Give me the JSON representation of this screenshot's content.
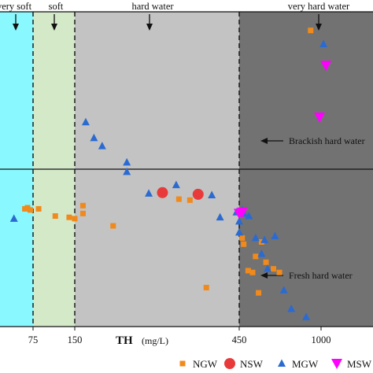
{
  "chart_data": {
    "type": "scatter",
    "xlabel": "TH",
    "xlabel_unit": "(mg/L)",
    "x_ticks": [
      "75",
      "150",
      "450",
      "1000"
    ],
    "zones": [
      {
        "label": "very soft",
        "color": "#8af9ff"
      },
      {
        "label": "soft",
        "color": "#d3e9c8"
      },
      {
        "label": "hard water",
        "color": "#c3c3c3"
      },
      {
        "label": "very hard water",
        "color": "#727272"
      }
    ],
    "annotations": [
      "Brackish hard water",
      "Fresh hard water"
    ],
    "legend": [
      {
        "name": "NGW",
        "marker": "square",
        "color": "#f08a1c"
      },
      {
        "name": "NSW",
        "marker": "circle",
        "color": "#e83a3a"
      },
      {
        "name": "MGW",
        "marker": "triangle-up",
        "color": "#2b6bd1"
      },
      {
        "name": "MSW",
        "marker": "triangle-down",
        "color": "#ff00ff"
      }
    ],
    "series": [
      {
        "name": "NGW",
        "points": [
          {
            "x": 60,
            "y": 470
          },
          {
            "x": 65,
            "y": 480
          },
          {
            "x": 70,
            "y": 460
          },
          {
            "x": 85,
            "y": 470
          },
          {
            "x": 115,
            "y": 410
          },
          {
            "x": 140,
            "y": 400
          },
          {
            "x": 150,
            "y": 390
          },
          {
            "x": 165,
            "y": 430
          },
          {
            "x": 165,
            "y": 500
          },
          {
            "x": 220,
            "y": 340
          },
          {
            "x": 340,
            "y": 565
          },
          {
            "x": 360,
            "y": 555
          },
          {
            "x": 390,
            "y": 105
          },
          {
            "x": 470,
            "y": 270
          },
          {
            "x": 480,
            "y": 240
          },
          {
            "x": 510,
            "y": 145
          },
          {
            "x": 540,
            "y": 140
          },
          {
            "x": 560,
            "y": 190
          },
          {
            "x": 580,
            "y": 95
          },
          {
            "x": 600,
            "y": 250
          },
          {
            "x": 630,
            "y": 170
          },
          {
            "x": 680,
            "y": 150
          },
          {
            "x": 720,
            "y": 140
          },
          {
            "x": 930,
            "y": 2700
          }
        ]
      },
      {
        "name": "NSW",
        "points": [
          {
            "x": 310,
            "y": 640
          },
          {
            "x": 375,
            "y": 620
          }
        ]
      },
      {
        "name": "MGW",
        "points": [
          {
            "x": 40,
            "y": 390
          },
          {
            "x": 170,
            "y": 1400
          },
          {
            "x": 185,
            "y": 1250
          },
          {
            "x": 200,
            "y": 1180
          },
          {
            "x": 245,
            "y": 1050
          },
          {
            "x": 245,
            "y": 950
          },
          {
            "x": 285,
            "y": 630
          },
          {
            "x": 335,
            "y": 740
          },
          {
            "x": 400,
            "y": 610
          },
          {
            "x": 415,
            "y": 400
          },
          {
            "x": 445,
            "y": 440
          },
          {
            "x": 450,
            "y": 370
          },
          {
            "x": 450,
            "y": 300
          },
          {
            "x": 470,
            "y": 460
          },
          {
            "x": 480,
            "y": 430
          },
          {
            "x": 515,
            "y": 410
          },
          {
            "x": 560,
            "y": 270
          },
          {
            "x": 600,
            "y": 200
          },
          {
            "x": 620,
            "y": 260
          },
          {
            "x": 640,
            "y": 150
          },
          {
            "x": 690,
            "y": 280
          },
          {
            "x": 750,
            "y": 100
          },
          {
            "x": 800,
            "y": 70
          },
          {
            "x": 900,
            "y": 60
          },
          {
            "x": 1030,
            "y": 2450
          }
        ]
      },
      {
        "name": "MSW",
        "points": [
          {
            "x": 450,
            "y": 430
          },
          {
            "x": 470,
            "y": 440
          },
          {
            "x": 1060,
            "y": 2100
          },
          {
            "x": 990,
            "y": 1450
          }
        ]
      }
    ]
  }
}
